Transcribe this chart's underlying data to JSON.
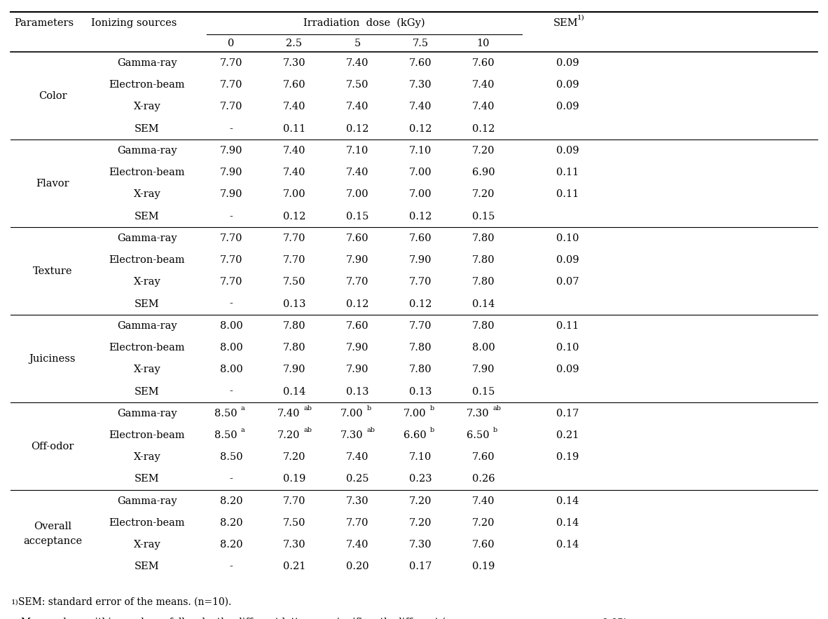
{
  "sections": [
    {
      "parameter": "Color",
      "param_lines": [
        "Color"
      ],
      "rows": [
        {
          "source": "Gamma-ray",
          "vals": [
            "7.70",
            "7.30",
            "7.40",
            "7.60",
            "7.60"
          ],
          "sups": [
            "",
            "",
            "",
            "",
            ""
          ],
          "sem": "0.09"
        },
        {
          "source": "Electron-beam",
          "vals": [
            "7.70",
            "7.60",
            "7.50",
            "7.30",
            "7.40"
          ],
          "sups": [
            "",
            "",
            "",
            "",
            ""
          ],
          "sem": "0.09"
        },
        {
          "source": "X-ray",
          "vals": [
            "7.70",
            "7.40",
            "7.40",
            "7.40",
            "7.40"
          ],
          "sups": [
            "",
            "",
            "",
            "",
            ""
          ],
          "sem": "0.09"
        },
        {
          "source": "SEM",
          "vals": [
            "-",
            "0.11",
            "0.12",
            "0.12",
            "0.12"
          ],
          "sups": [
            "",
            "",
            "",
            "",
            ""
          ],
          "sem": ""
        }
      ]
    },
    {
      "parameter": "Flavor",
      "param_lines": [
        "Flavor"
      ],
      "rows": [
        {
          "source": "Gamma-ray",
          "vals": [
            "7.90",
            "7.40",
            "7.10",
            "7.10",
            "7.20"
          ],
          "sups": [
            "",
            "",
            "",
            "",
            ""
          ],
          "sem": "0.09"
        },
        {
          "source": "Electron-beam",
          "vals": [
            "7.90",
            "7.40",
            "7.40",
            "7.00",
            "6.90"
          ],
          "sups": [
            "",
            "",
            "",
            "",
            ""
          ],
          "sem": "0.11"
        },
        {
          "source": "X-ray",
          "vals": [
            "7.90",
            "7.00",
            "7.00",
            "7.00",
            "7.20"
          ],
          "sups": [
            "",
            "",
            "",
            "",
            ""
          ],
          "sem": "0.11"
        },
        {
          "source": "SEM",
          "vals": [
            "-",
            "0.12",
            "0.15",
            "0.12",
            "0.15"
          ],
          "sups": [
            "",
            "",
            "",
            "",
            ""
          ],
          "sem": ""
        }
      ]
    },
    {
      "parameter": "Texture",
      "param_lines": [
        "Texture"
      ],
      "rows": [
        {
          "source": "Gamma-ray",
          "vals": [
            "7.70",
            "7.70",
            "7.60",
            "7.60",
            "7.80"
          ],
          "sups": [
            "",
            "",
            "",
            "",
            ""
          ],
          "sem": "0.10"
        },
        {
          "source": "Electron-beam",
          "vals": [
            "7.70",
            "7.70",
            "7.90",
            "7.90",
            "7.80"
          ],
          "sups": [
            "",
            "",
            "",
            "",
            ""
          ],
          "sem": "0.09"
        },
        {
          "source": "X-ray",
          "vals": [
            "7.70",
            "7.50",
            "7.70",
            "7.70",
            "7.80"
          ],
          "sups": [
            "",
            "",
            "",
            "",
            ""
          ],
          "sem": "0.07"
        },
        {
          "source": "SEM",
          "vals": [
            "-",
            "0.13",
            "0.12",
            "0.12",
            "0.14"
          ],
          "sups": [
            "",
            "",
            "",
            "",
            ""
          ],
          "sem": ""
        }
      ]
    },
    {
      "parameter": "Juiciness",
      "param_lines": [
        "Juiciness"
      ],
      "rows": [
        {
          "source": "Gamma-ray",
          "vals": [
            "8.00",
            "7.80",
            "7.60",
            "7.70",
            "7.80"
          ],
          "sups": [
            "",
            "",
            "",
            "",
            ""
          ],
          "sem": "0.11"
        },
        {
          "source": "Electron-beam",
          "vals": [
            "8.00",
            "7.80",
            "7.90",
            "7.80",
            "8.00"
          ],
          "sups": [
            "",
            "",
            "",
            "",
            ""
          ],
          "sem": "0.10"
        },
        {
          "source": "X-ray",
          "vals": [
            "8.00",
            "7.90",
            "7.90",
            "7.80",
            "7.90"
          ],
          "sups": [
            "",
            "",
            "",
            "",
            ""
          ],
          "sem": "0.09"
        },
        {
          "source": "SEM",
          "vals": [
            "-",
            "0.14",
            "0.13",
            "0.13",
            "0.15"
          ],
          "sups": [
            "",
            "",
            "",
            "",
            ""
          ],
          "sem": ""
        }
      ]
    },
    {
      "parameter": "Off-odor",
      "param_lines": [
        "Off-odor"
      ],
      "rows": [
        {
          "source": "Gamma-ray",
          "vals": [
            "8.50",
            "7.40",
            "7.00",
            "7.00",
            "7.30"
          ],
          "sups": [
            "a",
            "ab",
            "b",
            "b",
            "ab"
          ],
          "sem": "0.17"
        },
        {
          "source": "Electron-beam",
          "vals": [
            "8.50",
            "7.20",
            "7.30",
            "6.60",
            "6.50"
          ],
          "sups": [
            "a",
            "ab",
            "ab",
            "b",
            "b"
          ],
          "sem": "0.21"
        },
        {
          "source": "X-ray",
          "vals": [
            "8.50",
            "7.20",
            "7.40",
            "7.10",
            "7.60"
          ],
          "sups": [
            "",
            "",
            "",
            "",
            ""
          ],
          "sem": "0.19"
        },
        {
          "source": "SEM",
          "vals": [
            "-",
            "0.19",
            "0.25",
            "0.23",
            "0.26"
          ],
          "sups": [
            "",
            "",
            "",
            "",
            ""
          ],
          "sem": ""
        }
      ]
    },
    {
      "parameter": "Overall\nacceptance",
      "param_lines": [
        "Overall",
        "acceptance"
      ],
      "rows": [
        {
          "source": "Gamma-ray",
          "vals": [
            "8.20",
            "7.70",
            "7.30",
            "7.20",
            "7.40"
          ],
          "sups": [
            "",
            "",
            "",
            "",
            ""
          ],
          "sem": "0.14"
        },
        {
          "source": "Electron-beam",
          "vals": [
            "8.20",
            "7.50",
            "7.70",
            "7.20",
            "7.20"
          ],
          "sups": [
            "",
            "",
            "",
            "",
            ""
          ],
          "sem": "0.14"
        },
        {
          "source": "X-ray",
          "vals": [
            "8.20",
            "7.30",
            "7.40",
            "7.30",
            "7.60"
          ],
          "sups": [
            "",
            "",
            "",
            "",
            ""
          ],
          "sem": "0.14"
        },
        {
          "source": "SEM",
          "vals": [
            "-",
            "0.21",
            "0.20",
            "0.17",
            "0.19"
          ],
          "sups": [
            "",
            "",
            "",
            "",
            ""
          ],
          "sem": ""
        }
      ]
    }
  ],
  "dose_labels": [
    "0",
    "2.5",
    "5",
    "7.5",
    "10"
  ],
  "bg_color": "#ffffff"
}
